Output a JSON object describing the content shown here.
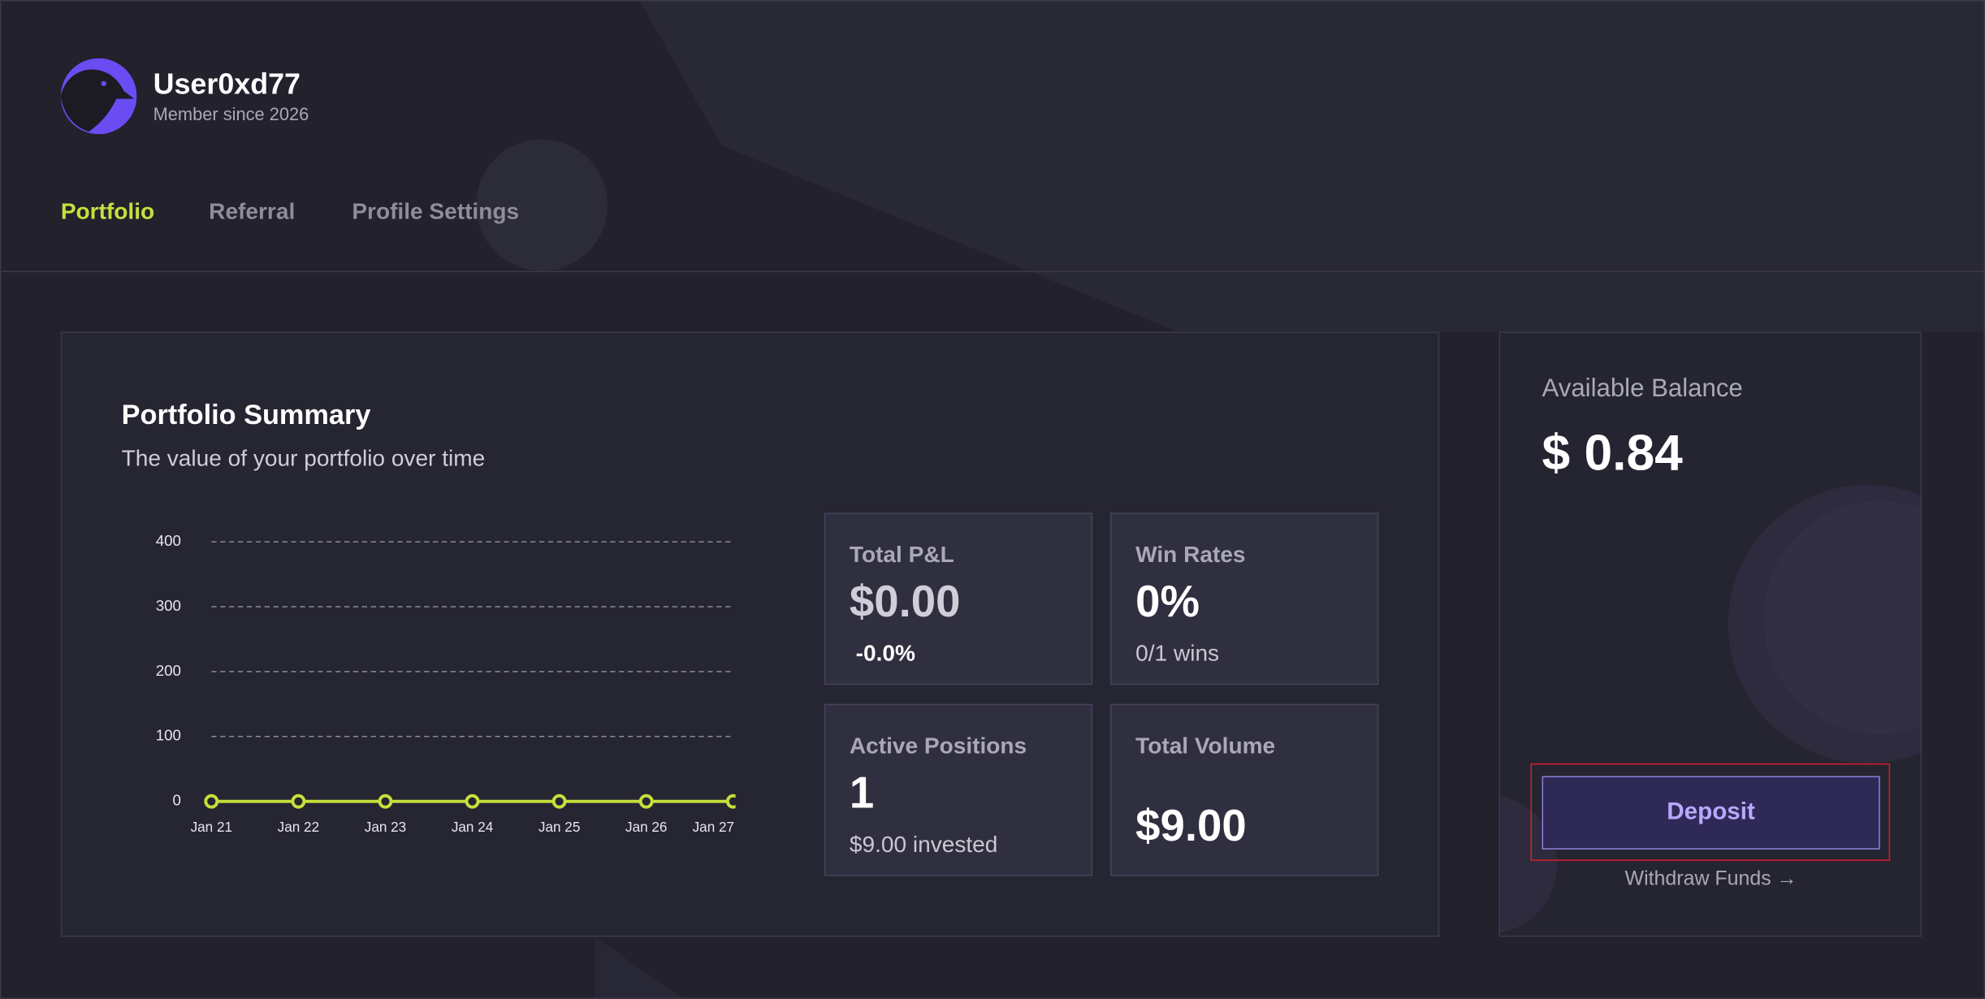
{
  "header": {
    "username": "User0xd77",
    "member_since": "Member since 2026"
  },
  "tabs": [
    "Portfolio",
    "Referral",
    "Profile Settings"
  ],
  "portfolio": {
    "title": "Portfolio Summary",
    "subtitle": "The value of your portfolio over time",
    "chart": {
      "type": "line",
      "x": [
        "Jan 21",
        "Jan 22",
        "Jan 23",
        "Jan 24",
        "Jan 25",
        "Jan 26",
        "Jan 27"
      ],
      "series": [
        {
          "color": "#c5e03c",
          "values": [
            0,
            0,
            0,
            0,
            0,
            0,
            0
          ]
        }
      ],
      "ylim": [
        0,
        400
      ],
      "yticks": [
        0,
        100,
        200,
        300,
        400
      ],
      "grid": true
    }
  },
  "stats": [
    {
      "label": "Total P&L",
      "value": "$0.00",
      "sub": "-0.0%"
    },
    {
      "label": "Win Rates",
      "value": "0%",
      "sub": "0/1 wins"
    },
    {
      "label": "Active Positions",
      "value": "1",
      "sub": "$9.00 invested"
    },
    {
      "label": "Total Volume",
      "value": "$9.00"
    }
  ],
  "balance": {
    "label": "Available Balance",
    "value": "$ 0.84",
    "deposit": "Deposit",
    "withdraw": "Withdraw Funds →"
  }
}
